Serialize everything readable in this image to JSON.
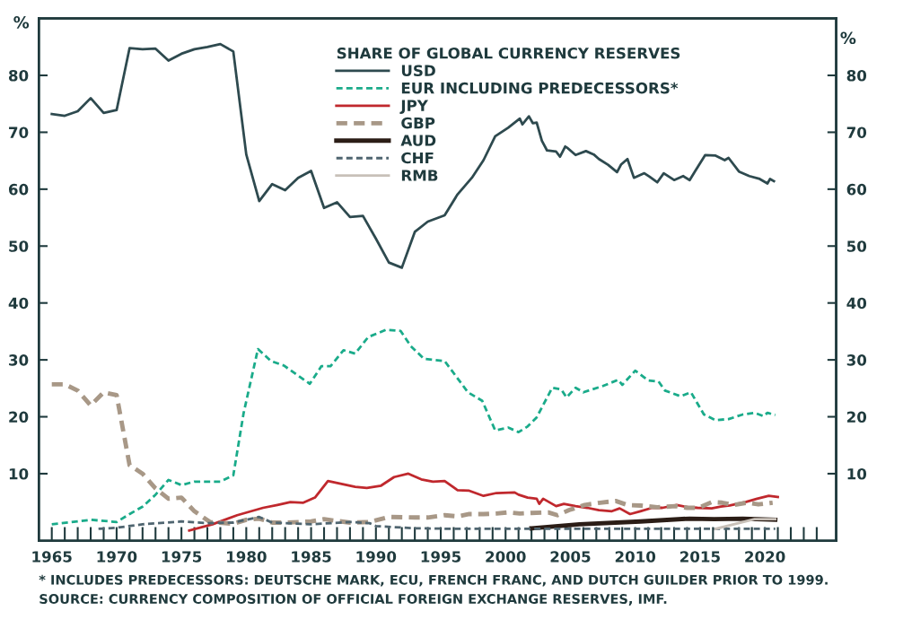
{
  "chart_data": {
    "type": "line",
    "legend_title": "SHARE OF GLOBAL CURRENCY RESERVES",
    "ylabel": "%",
    "y2label": "%",
    "xlim": [
      1964,
      2025.5
    ],
    "ylim": [
      -1.8,
      90
    ],
    "y2lim": [
      -1.8,
      90
    ],
    "yticks": [
      10,
      20,
      30,
      40,
      50,
      60,
      70,
      80
    ],
    "y2ticks": [
      10,
      20,
      30,
      40,
      50,
      60,
      70,
      80
    ],
    "xticks": [
      1965,
      {
        "value": 1966,
        "label": null
      },
      {
        "value": 1967,
        "label": null
      },
      {
        "value": 1968,
        "label": null
      },
      {
        "value": 1969,
        "label": null
      },
      1970,
      {
        "value": 1971,
        "label": null
      },
      {
        "value": 1972,
        "label": null
      },
      {
        "value": 1973,
        "label": null
      },
      {
        "value": 1974,
        "label": null
      },
      1975,
      {
        "value": 1976,
        "label": null
      },
      {
        "value": 1977,
        "label": null
      },
      {
        "value": 1978,
        "label": null
      },
      {
        "value": 1979,
        "label": null
      },
      1980,
      {
        "value": 1981,
        "label": null
      },
      {
        "value": 1982,
        "label": null
      },
      {
        "value": 1983,
        "label": null
      },
      {
        "value": 1984,
        "label": null
      },
      1985,
      {
        "value": 1986,
        "label": null
      },
      {
        "value": 1987,
        "label": null
      },
      {
        "value": 1988,
        "label": null
      },
      {
        "value": 1989,
        "label": null
      },
      1990,
      {
        "value": 1991,
        "label": null
      },
      {
        "value": 1992,
        "label": null
      },
      {
        "value": 1993,
        "label": null
      },
      {
        "value": 1994,
        "label": null
      },
      1995,
      {
        "value": 1996,
        "label": null
      },
      {
        "value": 1997,
        "label": null
      },
      {
        "value": 1998,
        "label": null
      },
      {
        "value": 1999,
        "label": null
      },
      2000,
      {
        "value": 2001,
        "label": null
      },
      {
        "value": 2002,
        "label": null
      },
      {
        "value": 2003,
        "label": null
      },
      {
        "value": 2004,
        "label": null
      },
      2005,
      {
        "value": 2006,
        "label": null
      },
      {
        "value": 2007,
        "label": null
      },
      {
        "value": 2008,
        "label": null
      },
      {
        "value": 2009,
        "label": null
      },
      2010,
      {
        "value": 2011,
        "label": null
      },
      {
        "value": 2012,
        "label": null
      },
      {
        "value": 2013,
        "label": null
      },
      {
        "value": 2014,
        "label": null
      },
      2015,
      {
        "value": 2016,
        "label": null
      },
      {
        "value": 2017,
        "label": null
      },
      {
        "value": 2018,
        "label": null
      },
      {
        "value": 2019,
        "label": null
      },
      2020,
      {
        "value": 2021,
        "label": null
      },
      {
        "value": 2022,
        "label": null
      },
      {
        "value": 2023,
        "label": null
      },
      {
        "value": 2024,
        "label": null
      }
    ],
    "grid": false,
    "legend": "top",
    "marker": "none",
    "series": [
      {
        "name": "USD",
        "color": "#2e4a4f",
        "line_style": "solid",
        "x": [
          1965,
          1966,
          1967,
          1968,
          1969,
          1970,
          1971,
          1972,
          1973,
          1974,
          1975,
          1976,
          1977,
          1978,
          1979,
          1980,
          1981,
          1982,
          1983,
          1984,
          1985,
          1986,
          1987,
          1988,
          1989,
          1990,
          1991,
          1992,
          1993,
          1994,
          1995.3,
          1996.3,
          1997.4,
          1998.3,
          1999.2,
          2000.2,
          2001.1,
          2001.3,
          2001.8,
          2002.1,
          2002.4,
          2002.8,
          2003.2,
          2003.9,
          2004.2,
          2004.6,
          2004.8,
          2005.4,
          2006.2,
          2006.8,
          2007.2,
          2007.9,
          2008.6,
          2008.9,
          2009.4,
          2009.9,
          2010.7,
          2011.1,
          2011.7,
          2012.2,
          2013,
          2013.7,
          2014.2,
          2014.6,
          2015.4,
          2016.2,
          2016.9,
          2017.2,
          2018,
          2018.8,
          2019.6,
          2020.2,
          2020.4,
          2020.7
        ],
        "values": [
          73.2,
          72.9,
          73.7,
          76.0,
          73.4,
          73.9,
          84.8,
          84.6,
          84.7,
          82.6,
          83.8,
          84.6,
          85.0,
          85.5,
          84.2,
          66.1,
          57.9,
          60.9,
          59.8,
          62.0,
          63.2,
          56.7,
          57.7,
          55.1,
          55.3,
          51.3,
          47.1,
          46.2,
          52.5,
          54.3,
          55.4,
          59.1,
          62.0,
          65.1,
          69.3,
          70.8,
          72.4,
          71.4,
          72.8,
          71.6,
          71.7,
          68.5,
          66.8,
          66.6,
          65.7,
          67.5,
          67.2,
          66.0,
          66.7,
          66.1,
          65.3,
          64.3,
          63.0,
          64.3,
          65.3,
          62.0,
          62.8,
          62.2,
          61.2,
          62.8,
          61.6,
          62.3,
          61.6,
          63.1,
          66.0,
          65.9,
          65.1,
          65.5,
          63.1,
          62.3,
          61.8,
          61.0,
          61.8,
          61.4
        ]
      },
      {
        "name": "EUR INCLUDING PREDECESSORS*",
        "color": "#1aab8a",
        "line_style": "dashed",
        "x": [
          1965,
          1967,
          1968,
          1970,
          1971,
          1972,
          1973,
          1974,
          1975,
          1976,
          1978,
          1979,
          1979.8,
          1980.9,
          1981.9,
          1982.9,
          1984.9,
          1985.8,
          1986.5,
          1987.5,
          1988.4,
          1989.4,
          1990.8,
          1991.9,
          1992.7,
          1993.7,
          1995.3,
          1997.1,
          1998.2,
          1999.2,
          2000.2,
          2001,
          2001.7,
          2002.4,
          2003.6,
          2004.3,
          2004.7,
          2005.4,
          2006,
          2007.5,
          2008.7,
          2009,
          2010,
          2011,
          2011.8,
          2012.3,
          2013.5,
          2014.3,
          2015.3,
          2016.2,
          2017.2,
          2018.3,
          2019.2,
          2019.9,
          2020.2,
          2020.8
        ],
        "values": [
          1.1,
          1.6,
          1.9,
          1.5,
          2.9,
          4.2,
          6.3,
          8.9,
          8.0,
          8.6,
          8.6,
          9.7,
          20.7,
          31.9,
          29.8,
          29.0,
          25.8,
          28.9,
          28.9,
          31.7,
          31.1,
          34.0,
          35.3,
          35.1,
          32.4,
          30.2,
          29.8,
          24.3,
          22.8,
          17.6,
          18.1,
          17.3,
          18.3,
          19.9,
          25.1,
          24.8,
          23.4,
          25.1,
          24.3,
          25.4,
          26.5,
          25.6,
          28.1,
          26.4,
          26.2,
          24.6,
          23.6,
          24.3,
          20.4,
          19.4,
          19.6,
          20.4,
          20.7,
          20.1,
          20.7,
          20.3
        ]
      },
      {
        "name": "JPY",
        "color": "#c0282d",
        "line_style": "solid",
        "x": [
          1975.6,
          1977.4,
          1979.3,
          1981.3,
          1982.4,
          1983.4,
          1984.4,
          1985.3,
          1986.3,
          1988.4,
          1989.3,
          1990.4,
          1991.4,
          1992.5,
          1993.5,
          1994.4,
          1995.3,
          1996.3,
          1997.2,
          1998.3,
          1999.3,
          2000.7,
          2001,
          2001.7,
          2002.4,
          2002.6,
          2002.9,
          2003.9,
          2004.5,
          2005.4,
          2006.3,
          2007.2,
          2008.2,
          2008.8,
          2009.6,
          2010.4,
          2011.3,
          2012.1,
          2013.2,
          2014.1,
          2014.8,
          2015.9,
          2016.6,
          2017.3,
          2018.5,
          2019.4,
          2020.3,
          2021
        ],
        "values": [
          0.0,
          1.1,
          2.7,
          4.0,
          4.5,
          5.0,
          4.9,
          5.8,
          8.7,
          7.7,
          7.5,
          7.9,
          9.4,
          10.0,
          9.0,
          8.6,
          8.7,
          7.1,
          7.0,
          6.1,
          6.6,
          6.7,
          6.3,
          5.8,
          5.6,
          4.7,
          5.6,
          4.3,
          4.7,
          4.3,
          4.0,
          3.6,
          3.4,
          3.9,
          2.9,
          3.4,
          4.0,
          4.0,
          4.5,
          4.1,
          4.0,
          3.9,
          4.2,
          4.4,
          5.0,
          5.6,
          6.1,
          5.9
        ]
      },
      {
        "name": "GBP",
        "color": "#a89887",
        "line_style": "dashed",
        "x": [
          1965,
          1966,
          1967,
          1968,
          1969,
          1970,
          1971,
          1972,
          1973,
          1974,
          1975,
          1976,
          1977.2,
          1979,
          1980,
          1981,
          1982,
          1983,
          1985,
          1986,
          1988,
          1989.5,
          1991,
          1993,
          1994,
          1995.3,
          1996.3,
          1997.2,
          1998.3,
          1999.3,
          2000.2,
          2001.1,
          2002,
          2003.3,
          2004,
          2004.9,
          2006.1,
          2007.3,
          2008.5,
          2009.4,
          2010.4,
          2011.7,
          2013.1,
          2014,
          2014.9,
          2015.9,
          2016.7,
          2017.6,
          2018.6,
          2019.5,
          2020.6
        ],
        "values": [
          25.7,
          25.7,
          24.6,
          22.0,
          24.3,
          23.8,
          11.5,
          10.0,
          7.4,
          5.6,
          5.8,
          3.4,
          1.5,
          1.2,
          1.9,
          2.1,
          1.4,
          1.4,
          1.6,
          2.0,
          1.4,
          1.5,
          2.4,
          2.3,
          2.3,
          2.7,
          2.5,
          2.9,
          2.9,
          3.0,
          3.2,
          3.0,
          3.1,
          3.2,
          2.7,
          3.6,
          4.5,
          4.9,
          5.2,
          4.5,
          4.4,
          4.1,
          4.3,
          4.0,
          4.0,
          5.0,
          4.9,
          4.5,
          4.9,
          4.6,
          4.9
        ]
      },
      {
        "name": "AUD",
        "color": "#2b1d16",
        "line_style": "solid",
        "x": [
          2002,
          2005.7,
          2010.4,
          2014.2,
          2016.1,
          2018.3,
          2020.8
        ],
        "values": [
          0.4,
          1.1,
          1.6,
          2.1,
          2.0,
          2.1,
          1.9
        ]
      },
      {
        "name": "CHF",
        "color": "#4f6570",
        "line_style": "dashed",
        "x": [
          1968.6,
          1970,
          1972,
          1975,
          1977,
          1979,
          1981,
          1982,
          1985,
          1988,
          1989.5,
          1990,
          1993,
          1996.3,
          2000,
          2017,
          2020.8
        ],
        "values": [
          0.3,
          0.5,
          1.1,
          1.6,
          1.3,
          1.4,
          2.4,
          1.4,
          1.1,
          1.5,
          1.3,
          0.8,
          0.4,
          0.3,
          0.3,
          0.3,
          0.3
        ]
      },
      {
        "name": "RMB",
        "color": "#c8c0b8",
        "line_style": "solid",
        "x": [
          2016.2,
          2019.2,
          2020.8
        ],
        "values": [
          0.3,
          2.0,
          2.0
        ]
      }
    ],
    "annotations": [
      "* INCLUDES PREDECESSORS: DEUTSCHE MARK, ECU, FRENCH FRANC, AND DUTCH GUILDER PRIOR TO 1999.",
      "SOURCE: CURRENCY COMPOSITION OF OFFICIAL FOREIGN EXCHANGE RESERVES, IMF."
    ]
  }
}
